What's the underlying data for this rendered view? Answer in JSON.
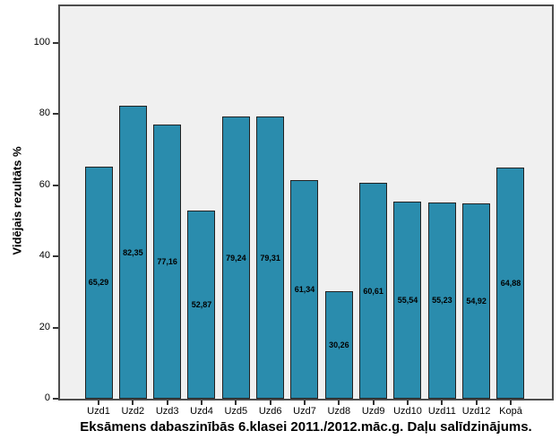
{
  "chart_data": {
    "type": "bar",
    "title": "Eksāmens dabaszinībās 6.klasei 2011./2012.māc.g. Daļu salīdzinājums.",
    "ylabel": "Vidējais rezultāts %",
    "xlabel": "",
    "categories": [
      "Uzd1",
      "Uzd2",
      "Uzd3",
      "Uzd4",
      "Uzd5",
      "Uzd6",
      "Uzd7",
      "Uzd8",
      "Uzd9",
      "Uzd10",
      "Uzd11",
      "Uzd12",
      "Kopā"
    ],
    "values": [
      65.29,
      82.35,
      77.16,
      52.87,
      79.24,
      79.31,
      61.34,
      30.26,
      60.61,
      55.54,
      55.23,
      54.92,
      64.88
    ],
    "value_labels": [
      "65,29",
      "82,35",
      "77,16",
      "52,87",
      "79,24",
      "79,31",
      "61,34",
      "30,26",
      "60,61",
      "55,54",
      "55,23",
      "54,92",
      "64,88"
    ],
    "yticks": [
      0,
      20,
      40,
      60,
      80,
      100
    ],
    "ylim": [
      0,
      110
    ],
    "grid": false,
    "legend_position": "none",
    "colors": {
      "bar_fill": "#2a8cad",
      "bar_border": "#222222",
      "plot_background": "#f0f0f0",
      "frame_border": "#4d4d4d",
      "tick": "#333333",
      "text": "#000000",
      "page_background": "#ffffff"
    }
  }
}
